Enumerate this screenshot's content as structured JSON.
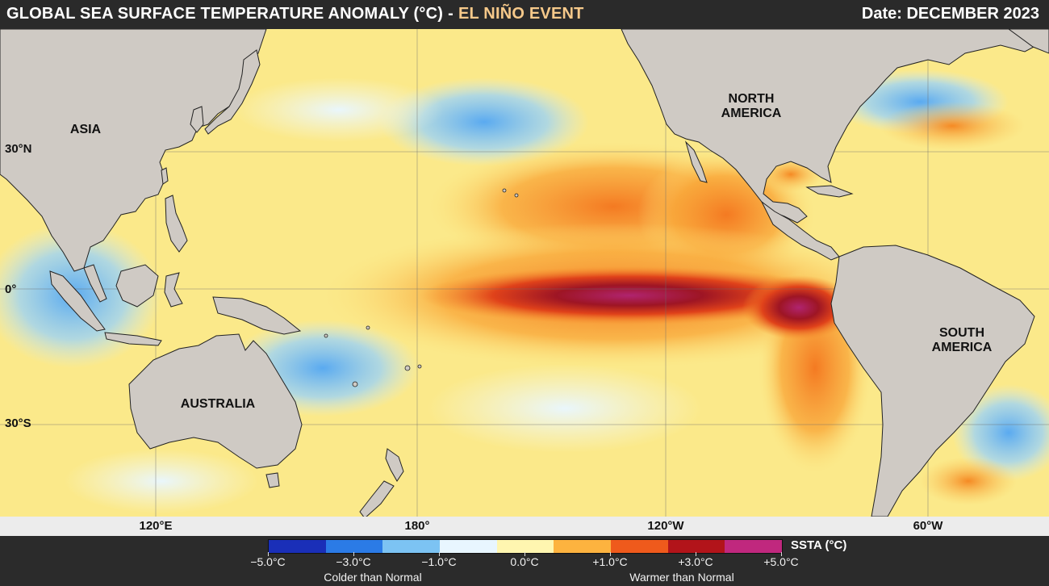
{
  "header": {
    "title": "GLOBAL SEA SURFACE TEMPERATURE ANOMALY (°C)",
    "separator": "-",
    "event": "EL NIÑO EVENT",
    "date": "Date: DECEMBER 2023"
  },
  "map": {
    "latitudes": [
      "30°N",
      "0°",
      "30°S"
    ],
    "longitudes": [
      "120°E",
      "180°",
      "120°W",
      "60°W"
    ],
    "regions": {
      "asia": "ASIA",
      "north_america_1": "NORTH",
      "north_america_2": "AMERICA",
      "south_america_1": "SOUTH",
      "south_america_2": "AMERICA",
      "australia": "AUSTRALIA"
    }
  },
  "legend": {
    "unit": "SSTA (°C)",
    "ticks": [
      "−5.0°C",
      "−3.0°C",
      "−1.0°C",
      "0.0°C",
      "+1.0°C",
      "+3.0°C",
      "+5.0°C"
    ],
    "colder": "Colder than Normal",
    "warmer": "Warmer than Normal",
    "colors": [
      "#1a2fb8",
      "#2b7be6",
      "#7cc3f3",
      "#e8f6ff",
      "#fff6b0",
      "#fdb33f",
      "#ef5a1c",
      "#b2141a",
      "#c0287e"
    ]
  },
  "colors": {
    "land": "#cfcac4",
    "ocean_neutral": "#fbe98a"
  }
}
